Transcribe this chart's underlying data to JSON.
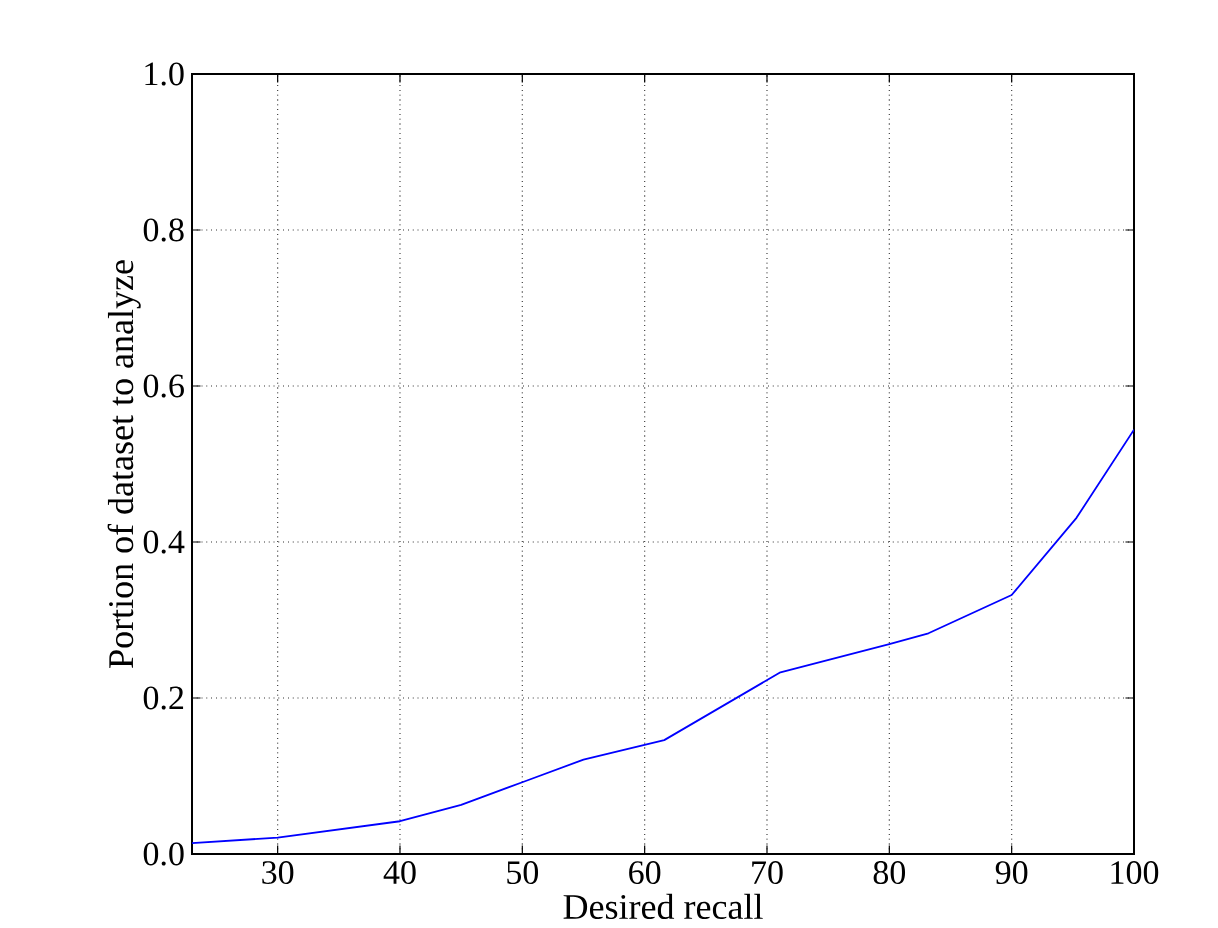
{
  "chart_data": {
    "type": "line",
    "xlabel": "Desired recall",
    "ylabel": "Portion of dataset to analyze",
    "x": [
      23,
      30,
      40,
      45,
      50,
      55,
      61.6,
      71.1,
      80,
      83.2,
      90,
      95.3,
      100
    ],
    "series": [
      {
        "color": "#0000ff",
        "values": [
          0.014,
          0.021,
          0.042,
          0.063,
          0.092,
          0.121,
          0.146,
          0.233,
          0.269,
          0.283,
          0.332,
          0.431,
          0.544
        ]
      }
    ],
    "xlim": [
      23,
      100
    ],
    "ylim": [
      0,
      1
    ],
    "xticks": [
      30,
      40,
      50,
      60,
      70,
      80,
      90,
      100
    ],
    "yticks": [
      {
        "value": 0,
        "label": "0.0"
      },
      {
        "value": 0.2,
        "label": "0.2"
      },
      {
        "value": 0.4,
        "label": "0.4"
      },
      {
        "value": 0.6,
        "label": "0.6"
      },
      {
        "value": 0.8,
        "label": "0.8"
      },
      {
        "value": 1.0,
        "label": "1.0"
      }
    ],
    "grid": true,
    "marker": "none",
    "line_style": "solid"
  }
}
